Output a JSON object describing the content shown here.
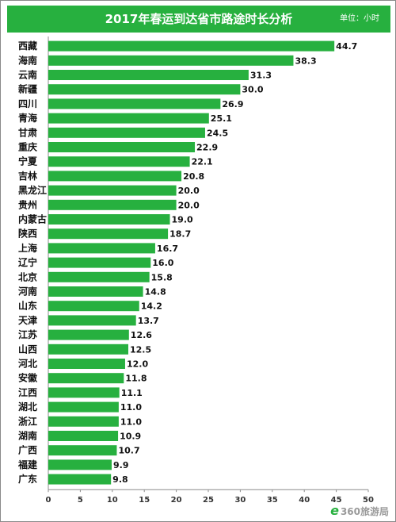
{
  "chart": {
    "title": "2017年春运到达省市路途时长分析",
    "unit_label": "单位：小时",
    "bar_color": "#27b03f",
    "header_color": "#27b03f"
  },
  "watermark": {
    "logo_icon": "e",
    "text": "360旅游局"
  },
  "chart_data": {
    "type": "bar",
    "orientation": "horizontal",
    "title": "2017年春运到达省市路途时长分析",
    "unit": "单位：小时",
    "categories": [
      "西藏",
      "海南",
      "云南",
      "新疆",
      "四川",
      "青海",
      "甘肃",
      "重庆",
      "宁夏",
      "吉林",
      "黑龙江",
      "贵州",
      "内蒙古",
      "陕西",
      "上海",
      "辽宁",
      "北京",
      "河南",
      "山东",
      "天津",
      "江苏",
      "山西",
      "河北",
      "安徽",
      "江西",
      "湖北",
      "浙江",
      "湖南",
      "广西",
      "福建",
      "广东"
    ],
    "values": [
      44.7,
      38.3,
      31.3,
      30.0,
      26.9,
      25.1,
      24.5,
      22.9,
      22.1,
      20.8,
      20.0,
      20.0,
      19.0,
      18.7,
      16.7,
      16.0,
      15.8,
      14.8,
      14.2,
      13.7,
      12.6,
      12.5,
      12.0,
      11.8,
      11.1,
      11.0,
      11.0,
      10.9,
      10.7,
      9.9,
      9.8
    ],
    "value_labels": [
      "44.7",
      "38.3",
      "31.3",
      "30.0",
      "26.9",
      "25.1",
      "24.5",
      "22.9",
      "22.1",
      "20.8",
      "20.0",
      "20.0",
      "19.0",
      "18.7",
      "16.7",
      "16.0",
      "15.8",
      "14.8",
      "14.2",
      "13.7",
      "12.6",
      "12.5",
      "12.0",
      "11.8",
      "11.1",
      "11.0",
      "11.0",
      "10.9",
      "10.7",
      "9.9",
      "9.8"
    ],
    "x_ticks": [
      "0",
      "5",
      "10",
      "15",
      "20",
      "25",
      "30",
      "35",
      "40",
      "45",
      "50"
    ],
    "xlim": [
      0,
      50
    ],
    "grid": false,
    "legend": "none"
  }
}
